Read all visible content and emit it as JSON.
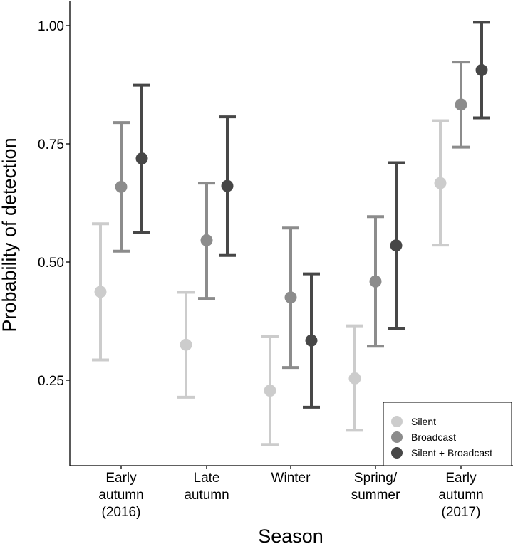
{
  "chart_data": {
    "type": "scatter",
    "subtype": "dot-errorbar",
    "title": "",
    "xlabel": "Season",
    "ylabel": "Probability of detection",
    "ylim": [
      0.1,
      1.05
    ],
    "yticks": [
      0.25,
      0.5,
      0.75,
      1.0
    ],
    "ytick_labels": [
      "0.25",
      "0.50",
      "0.75",
      "1.00"
    ],
    "categories": [
      [
        "Early",
        "autumn",
        "(2016)"
      ],
      [
        "Late",
        "autumn"
      ],
      [
        "Winter"
      ],
      [
        "Spring/",
        "summer"
      ],
      [
        "Early",
        "autumn",
        "(2017)"
      ]
    ],
    "grid": false,
    "legend_position": "bottom-right",
    "series": [
      {
        "name": "Silent",
        "color": "#cccccc",
        "values": [
          0.437,
          0.325,
          0.228,
          0.254,
          0.667
        ],
        "lower": [
          0.293,
          0.214,
          0.114,
          0.144,
          0.536
        ],
        "upper": [
          0.581,
          0.436,
          0.342,
          0.365,
          0.799
        ]
      },
      {
        "name": "Broadcast",
        "color": "#8c8c8c",
        "values": [
          0.659,
          0.546,
          0.425,
          0.459,
          0.833
        ],
        "lower": [
          0.523,
          0.423,
          0.277,
          0.322,
          0.743
        ],
        "upper": [
          0.795,
          0.667,
          0.572,
          0.596,
          0.923
        ]
      },
      {
        "name": "Silent + Broadcast",
        "color": "#474747",
        "values": [
          0.719,
          0.661,
          0.334,
          0.535,
          0.906
        ],
        "lower": [
          0.563,
          0.514,
          0.193,
          0.36,
          0.805
        ],
        "upper": [
          0.874,
          0.807,
          0.475,
          0.71,
          1.007
        ]
      }
    ]
  }
}
